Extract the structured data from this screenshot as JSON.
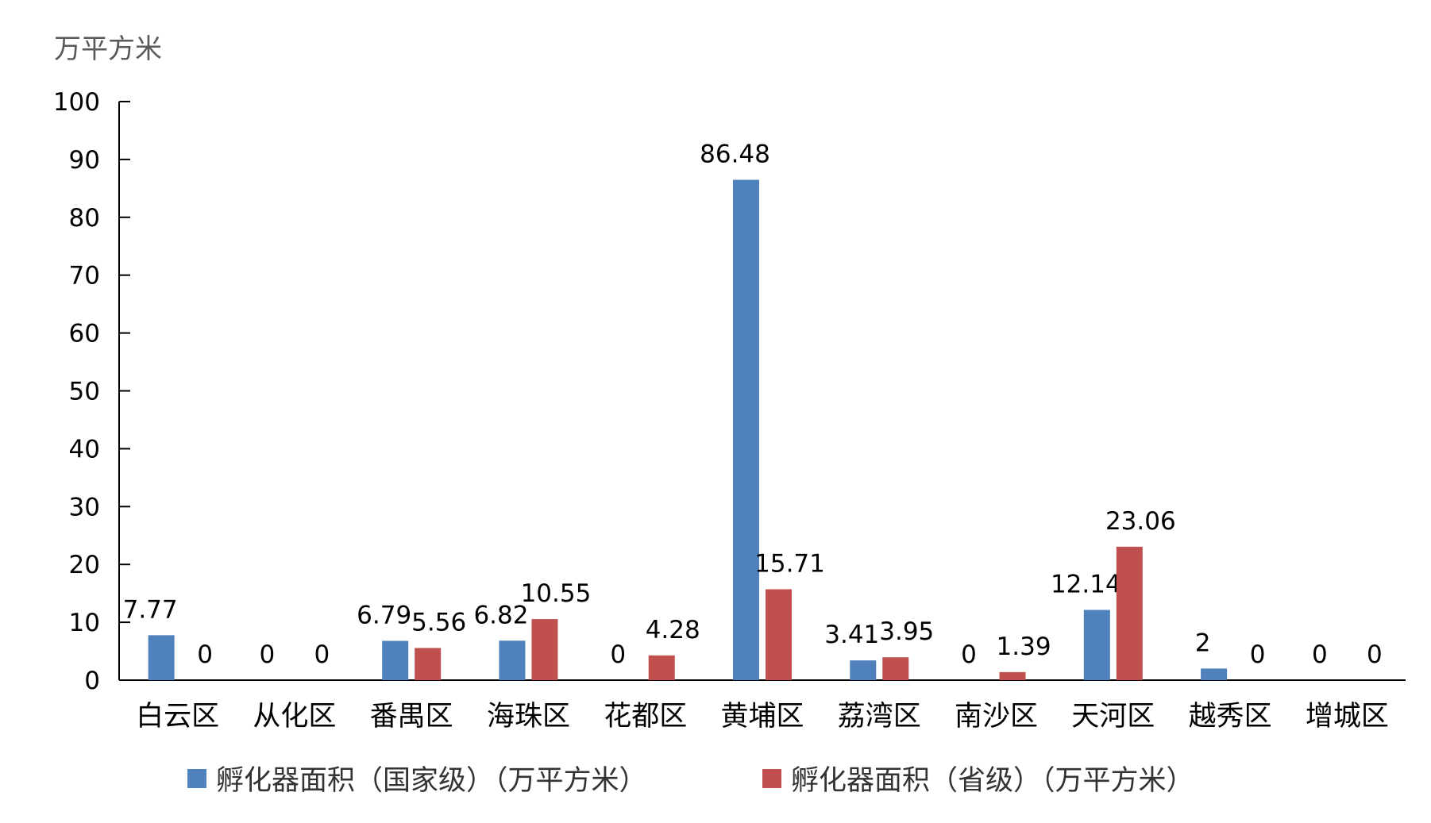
{
  "chart_data": {
    "type": "bar",
    "unit_label": "万平方米",
    "categories": [
      "白云区",
      "从化区",
      "番禺区",
      "海珠区",
      "花都区",
      "黄埔区",
      "荔湾区",
      "南沙区",
      "天河区",
      "越秀区",
      "增城区"
    ],
    "series": [
      {
        "name": "孵化器面积（国家级）（万平方米）",
        "color": "#4F81BD",
        "values": [
          7.77,
          0,
          6.79,
          6.82,
          0,
          86.48,
          3.41,
          0,
          12.14,
          2,
          0
        ],
        "labels": [
          "7.77",
          "0",
          "6.79",
          "6.82",
          "0",
          "86.48",
          "3.41",
          "0",
          "12.14",
          "2",
          "0"
        ]
      },
      {
        "name": "孵化器面积（省级）（万平方米）",
        "color": "#C0504D",
        "values": [
          0,
          0,
          5.56,
          10.55,
          4.28,
          15.71,
          3.95,
          1.39,
          23.06,
          0,
          0
        ],
        "labels": [
          "0",
          "0",
          "5.56",
          "10.55",
          "4.28",
          "15.71",
          "3.95",
          "1.39",
          "23.06",
          "0",
          "0"
        ]
      }
    ],
    "y_ticks": [
      "0",
      "10",
      "20",
      "30",
      "40",
      "50",
      "60",
      "70",
      "80",
      "90",
      "100"
    ],
    "ylim": [
      0,
      100
    ],
    "grid": false,
    "legend_position": "bottom"
  }
}
